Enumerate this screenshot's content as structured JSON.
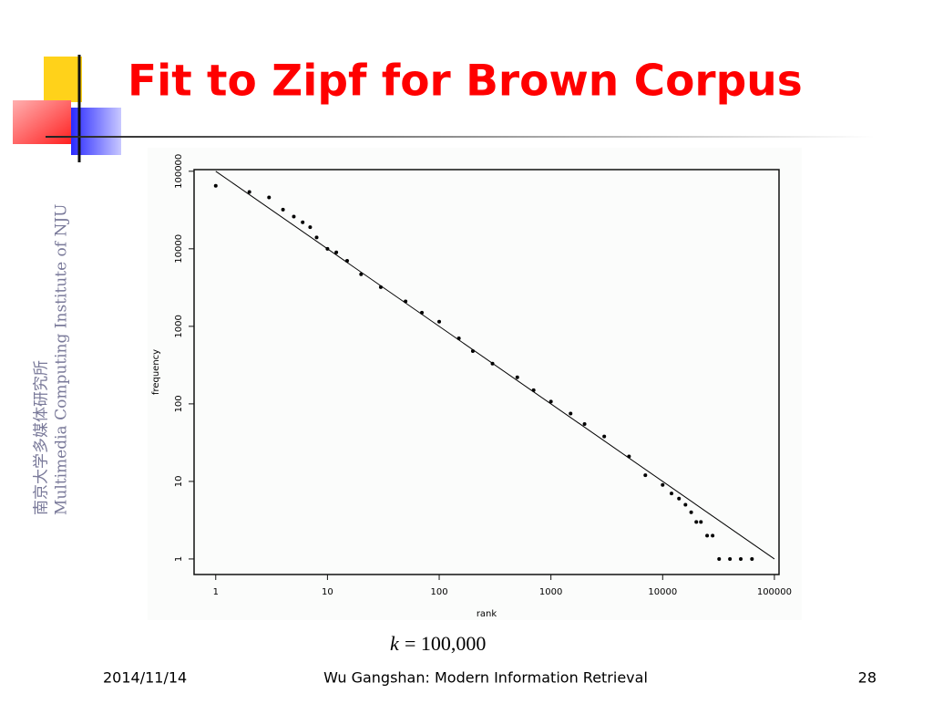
{
  "title": "Fit to Zipf for Brown Corpus",
  "side_text": [
    "南京大学多媒体研究所",
    "Multimedia Computing Institute of NJU"
  ],
  "caption": {
    "symbol": "k",
    "equals": "= 100,000"
  },
  "footer": {
    "date": "2014/11/14",
    "author": "Wu Gangshan: Modern Information Retrieval",
    "page": "28"
  },
  "chart_data": {
    "type": "scatter",
    "xlabel": "rank",
    "ylabel": "frequency",
    "xscale": "log",
    "yscale": "log",
    "xlim": [
      0.64,
      110000
    ],
    "ylim": [
      0.63,
      105000
    ],
    "xticks": [
      1,
      10,
      100,
      1000,
      10000,
      100000
    ],
    "yticks": [
      1,
      10,
      100,
      1000,
      10000,
      100000
    ],
    "series": [
      {
        "type": "scatter",
        "color": "#000000",
        "x": [
          1,
          2,
          3,
          4,
          5,
          6,
          7,
          8,
          10,
          12,
          15,
          20,
          30,
          50,
          70,
          100,
          150,
          200,
          300,
          500,
          700,
          1000,
          1500,
          2000,
          3000,
          5000,
          7000,
          10000,
          12000,
          14000,
          16000,
          18000,
          20000,
          22000,
          25000,
          28000,
          32000,
          40000,
          50000,
          63000
        ],
        "values": [
          65000,
          54000,
          46000,
          32000,
          26000,
          22000,
          19000,
          14000,
          10000,
          9000,
          7000,
          4700,
          3200,
          2100,
          1500,
          1150,
          700,
          480,
          330,
          220,
          150,
          107,
          75,
          55,
          38,
          21,
          12,
          9,
          7,
          6,
          5,
          4,
          3,
          3,
          2,
          2,
          1,
          1,
          1,
          1
        ]
      },
      {
        "type": "line",
        "color": "#000000",
        "x": [
          1,
          100000
        ],
        "values": [
          100000,
          1
        ]
      }
    ]
  }
}
